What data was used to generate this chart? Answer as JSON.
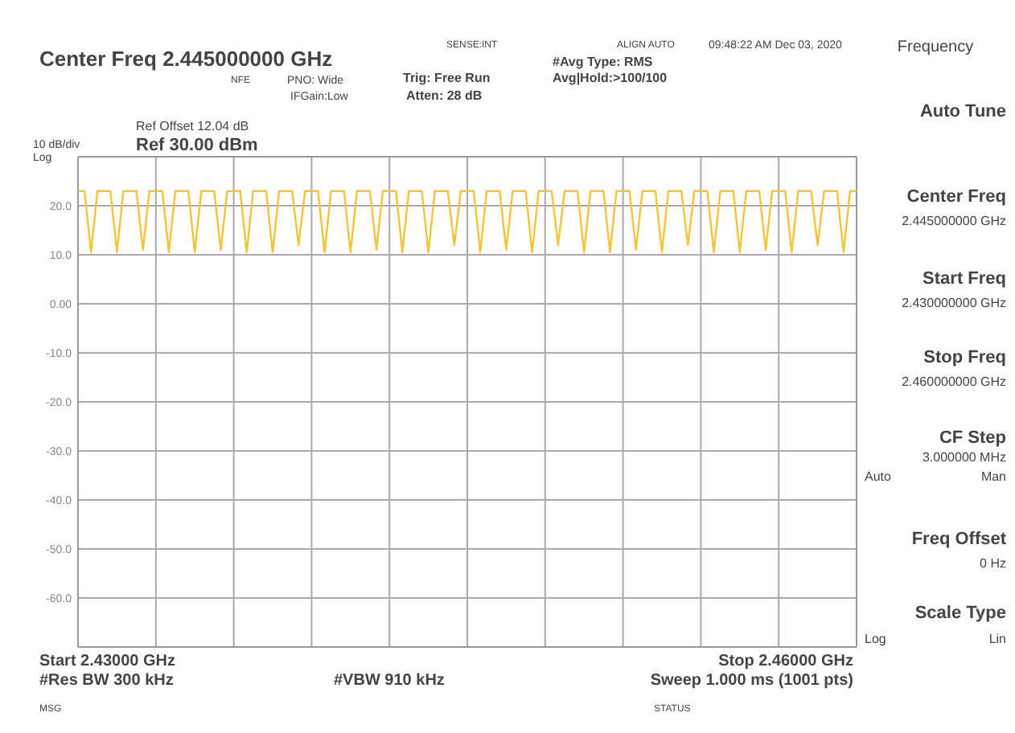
{
  "chart_data": {
    "type": "line",
    "title": "Center Freq 2.445000000 GHz",
    "categories": [
      null,
      null,
      null,
      null,
      null,
      null,
      null,
      null,
      null,
      null,
      null,
      null,
      null,
      null,
      null,
      null,
      null,
      null,
      null,
      null,
      null,
      null,
      null,
      null,
      null,
      null,
      null,
      null,
      null,
      null,
      null,
      null,
      null,
      null,
      null,
      null,
      null,
      null,
      null,
      null,
      null,
      null,
      null,
      null,
      null,
      null,
      null,
      null,
      null,
      null,
      null,
      null,
      null,
      null,
      null,
      null,
      null,
      null,
      null,
      null,
      null,
      null,
      null,
      null,
      null,
      null,
      null,
      null,
      null,
      null,
      null,
      null,
      null,
      null,
      null,
      null,
      null,
      null,
      null,
      null,
      null,
      null,
      null,
      null,
      null,
      null,
      null,
      null,
      null,
      null,
      null,
      null,
      null,
      null,
      null,
      null,
      null,
      null,
      null,
      null,
      null,
      null,
      null,
      null,
      null,
      null,
      null,
      null,
      null,
      null,
      null,
      null,
      null,
      null,
      null,
      null,
      null,
      null,
      null,
      null,
      null
    ],
    "series": [
      {
        "color": "#f2c43a",
        "values": [
          23,
          23,
          10.5,
          23,
          23,
          23,
          10.5,
          23,
          23,
          23,
          11,
          23,
          23,
          23,
          10.5,
          23,
          23,
          23,
          10.5,
          23,
          23,
          23,
          11,
          23,
          23,
          23,
          10.5,
          23,
          23,
          23,
          10.5,
          23,
          23,
          23,
          12,
          23,
          23,
          23,
          10.5,
          23,
          23,
          23,
          10.5,
          23,
          23,
          23,
          11,
          23,
          23,
          23,
          10.5,
          23,
          23,
          23,
          10.5,
          23,
          23,
          23,
          12,
          23,
          23,
          23,
          10.5,
          23,
          23,
          23,
          11,
          23,
          23,
          23,
          10.5,
          23,
          23,
          23,
          12,
          23,
          23,
          23,
          10.5,
          23,
          23,
          23,
          10.5,
          23,
          23,
          23,
          11,
          23,
          23,
          23,
          10.5,
          23,
          23,
          23,
          12,
          23,
          23,
          23,
          10.5,
          23,
          23,
          23,
          10.5,
          23,
          23,
          23,
          11,
          23,
          23,
          23,
          10.5,
          23,
          23,
          23,
          12,
          23,
          23,
          23,
          10.5,
          23,
          23
        ]
      }
    ],
    "ylim": [
      -70,
      30
    ],
    "yticks": [
      {
        "value": 30,
        "label": null
      },
      {
        "value": 20,
        "label": "20.0"
      },
      {
        "value": 10,
        "label": "10.0"
      },
      {
        "value": 0,
        "label": "0.00"
      },
      {
        "value": -10,
        "label": "-10.0"
      },
      {
        "value": -20,
        "label": "-20.0"
      },
      {
        "value": -30,
        "label": "-30.0"
      },
      {
        "value": -40,
        "label": "-40.0"
      },
      {
        "value": -50,
        "label": "-50.0"
      },
      {
        "value": -60,
        "label": "-60.0"
      },
      {
        "value": -70,
        "label": null
      }
    ],
    "tick_labels": "y",
    "grid": true,
    "marker": "none",
    "line_style": "solid",
    "annotations": [
      "Ref Offset 12.04 dB",
      "Ref 30.00 dBm",
      "10 dB/div",
      "Log",
      "NFE",
      "PNO: Wide",
      "IFGain:Low",
      "Trig: Free Run",
      "Atten: 28 dB",
      "#Avg Type: RMS",
      "Avg|Hold:>100/100",
      "SENSE:INT",
      "ALIGN AUTO",
      "09:48:22 AM Dec 03, 2020",
      "Start 2.43000 GHz",
      "Stop 2.46000 GHz",
      "#Res BW 300 kHz",
      "#VBW 910 kHz",
      "Sweep 1.000 ms (1001 pts)",
      "MSG",
      "STATUS",
      "Frequency",
      "Auto Tune",
      "Center Freq",
      "2.445000000 GHz",
      "Start Freq",
      "2.430000000 GHz",
      "Stop Freq",
      "2.460000000 GHz",
      "CF Step",
      "3.000000 MHz",
      "Auto",
      "Man",
      "Freq Offset",
      "0 Hz",
      "Scale Type",
      "Log",
      "Lin"
    ]
  }
}
